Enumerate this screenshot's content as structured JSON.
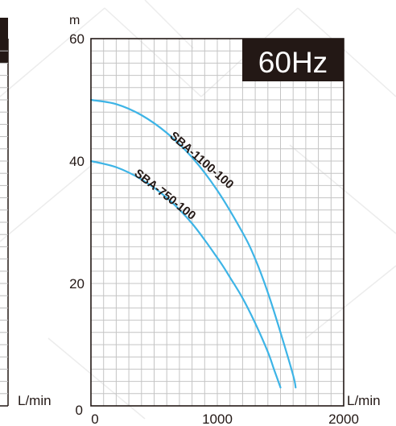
{
  "left_panel": {
    "xlabel": "L/min"
  },
  "chart_data": {
    "type": "line",
    "badge": "60Hz",
    "ylabel": "m",
    "xlabel": "L/min",
    "xlim": [
      0,
      2000
    ],
    "ylim": [
      0,
      60
    ],
    "x_ticks": [
      0,
      1000,
      2000
    ],
    "x_tick_labels": [
      "0",
      "1000",
      "2000"
    ],
    "y_ticks": [
      0,
      20,
      40,
      60
    ],
    "y_tick_labels": [
      "0",
      "20",
      "40",
      "60"
    ],
    "grid": true,
    "series": [
      {
        "name": "SBA-1100-100",
        "color": "#3db4e6",
        "x": [
          0,
          200,
          400,
          600,
          800,
          1000,
          1200,
          1300,
          1400,
          1500,
          1600,
          1620
        ],
        "y": [
          50,
          49.3,
          47.5,
          44.6,
          40.6,
          35.2,
          28.3,
          24.0,
          18.5,
          12.0,
          5.0,
          3.0
        ]
      },
      {
        "name": "SBA-750-100",
        "color": "#3db4e6",
        "x": [
          0,
          200,
          400,
          600,
          800,
          1000,
          1100,
          1200,
          1300,
          1400,
          1450,
          1500
        ],
        "y": [
          40,
          39.0,
          37.0,
          34.0,
          29.8,
          24.2,
          21.0,
          17.6,
          13.5,
          8.8,
          5.9,
          3.0
        ]
      }
    ]
  }
}
